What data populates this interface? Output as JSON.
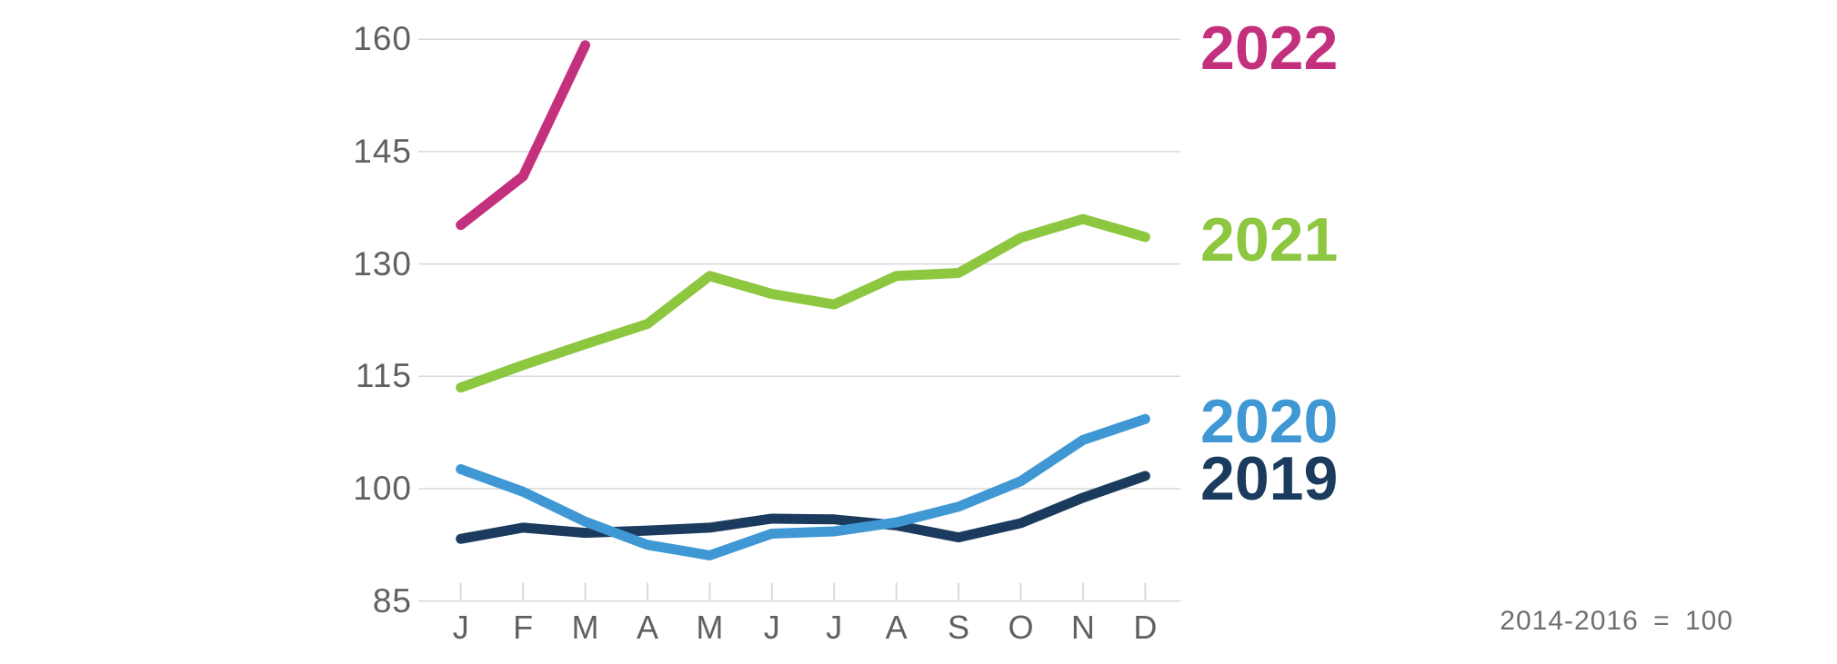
{
  "page": {
    "background": "#ffffff"
  },
  "chart_data": {
    "type": "line",
    "title": "",
    "note": "2014-2016 = 100",
    "x_tick_labels": [
      "J",
      "F",
      "M",
      "A",
      "M",
      "J",
      "J",
      "A",
      "S",
      "O",
      "N",
      "D"
    ],
    "y_ticks": [
      85,
      100,
      115,
      130,
      145,
      160
    ],
    "ylim": [
      85,
      160
    ],
    "grid": true,
    "legend_position": "right",
    "colors": {
      "grid": "#d9d9d9",
      "tick": "#d9d9d9",
      "axis_text": "#5f6062",
      "note_text": "#6d6e71",
      "background": "#ffffff"
    },
    "series": [
      {
        "name": "2019",
        "color": "#1b3b5e",
        "values": [
          93.3,
          94.8,
          94.1,
          94.4,
          94.8,
          96.0,
          95.9,
          95.1,
          93.5,
          95.4,
          98.8,
          101.7
        ]
      },
      {
        "name": "2020",
        "color": "#3f98d4",
        "values": [
          102.6,
          99.6,
          95.6,
          92.5,
          91.1,
          94.0,
          94.3,
          95.5,
          97.6,
          101.0,
          106.5,
          109.3
        ]
      },
      {
        "name": "2021",
        "color": "#8dc63f",
        "values": [
          113.5,
          116.5,
          119.3,
          122.0,
          128.4,
          126.0,
          124.6,
          128.4,
          128.8,
          133.5,
          136.0,
          133.6
        ]
      },
      {
        "name": "2022",
        "color": "#c3317e",
        "values": [
          135.2,
          141.7,
          159.2
        ]
      }
    ]
  }
}
